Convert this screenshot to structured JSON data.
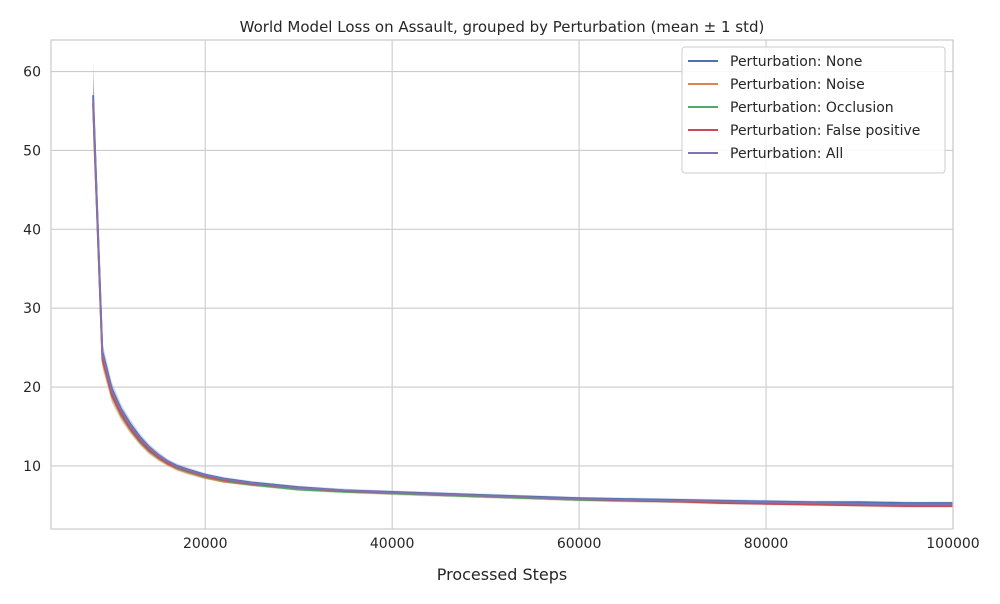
{
  "chart_data": {
    "type": "line",
    "title": "World Model Loss on Assault, grouped by Perturbation (mean ± 1 std)",
    "xlabel": "Processed Steps",
    "ylabel": "",
    "xlim": [
      3500,
      100000
    ],
    "ylim": [
      2,
      64
    ],
    "xticks": [
      20000,
      40000,
      60000,
      80000,
      100000
    ],
    "yticks": [
      10,
      20,
      30,
      40,
      50,
      60
    ],
    "grid": true,
    "legend_position": "top-right",
    "series": [
      {
        "name": "Perturbation: None",
        "color": "#4c72b0",
        "x": [
          8000,
          9000,
          10000,
          11000,
          12000,
          13000,
          14000,
          15000,
          16000,
          17000,
          18000,
          20000,
          22000,
          25000,
          30000,
          35000,
          40000,
          45000,
          50000,
          55000,
          60000,
          65000,
          70000,
          75000,
          80000,
          85000,
          90000,
          95000,
          100000
        ],
        "y": [
          57.0,
          24.5,
          19.8,
          17.2,
          15.3,
          13.7,
          12.4,
          11.4,
          10.6,
          10.0,
          9.6,
          8.9,
          8.4,
          7.9,
          7.3,
          6.9,
          6.7,
          6.5,
          6.3,
          6.1,
          5.9,
          5.8,
          5.7,
          5.6,
          5.5,
          5.4,
          5.4,
          5.3,
          5.3
        ],
        "std": [
          4.5,
          1.2,
          0.9,
          0.7,
          0.6,
          0.5,
          0.4,
          0.4,
          0.3,
          0.3,
          0.3,
          0.2,
          0.2,
          0.2,
          0.2,
          0.2,
          0.2,
          0.2,
          0.2,
          0.2,
          0.2,
          0.2,
          0.2,
          0.2,
          0.2,
          0.2,
          0.2,
          0.2,
          0.2
        ]
      },
      {
        "name": "Perturbation: Noise",
        "color": "#dd8452",
        "x": [
          8000,
          9000,
          10000,
          11000,
          12000,
          13000,
          14000,
          15000,
          16000,
          17000,
          18000,
          20000,
          22000,
          25000,
          30000,
          35000,
          40000,
          45000,
          50000,
          55000,
          60000,
          65000,
          70000,
          75000,
          80000,
          85000,
          90000,
          95000,
          100000
        ],
        "y": [
          55.5,
          23.3,
          18.8,
          16.3,
          14.5,
          13.0,
          11.8,
          10.9,
          10.2,
          9.6,
          9.2,
          8.5,
          8.0,
          7.6,
          7.1,
          6.8,
          6.5,
          6.3,
          6.1,
          5.9,
          5.7,
          5.6,
          5.5,
          5.4,
          5.3,
          5.2,
          5.1,
          5.1,
          5.0
        ],
        "std": [
          4.0,
          1.1,
          0.8,
          0.6,
          0.5,
          0.4,
          0.4,
          0.3,
          0.3,
          0.3,
          0.3,
          0.2,
          0.2,
          0.2,
          0.2,
          0.2,
          0.2,
          0.2,
          0.2,
          0.2,
          0.2,
          0.2,
          0.2,
          0.2,
          0.2,
          0.2,
          0.2,
          0.2,
          0.2
        ]
      },
      {
        "name": "Perturbation: Occlusion",
        "color": "#55a868",
        "x": [
          8000,
          9000,
          10000,
          11000,
          12000,
          13000,
          14000,
          15000,
          16000,
          17000,
          18000,
          20000,
          22000,
          25000,
          30000,
          35000,
          40000,
          45000,
          50000,
          55000,
          60000,
          65000,
          70000,
          75000,
          80000,
          85000,
          90000,
          95000,
          100000
        ],
        "y": [
          56.0,
          23.8,
          19.0,
          16.5,
          14.6,
          13.1,
          11.9,
          11.0,
          10.3,
          9.7,
          9.3,
          8.6,
          8.1,
          7.6,
          7.0,
          6.7,
          6.5,
          6.3,
          6.1,
          5.9,
          5.7,
          5.6,
          5.5,
          5.4,
          5.3,
          5.2,
          5.1,
          5.0,
          5.0
        ],
        "std": [
          4.2,
          1.1,
          0.9,
          0.7,
          0.5,
          0.5,
          0.4,
          0.4,
          0.3,
          0.3,
          0.3,
          0.3,
          0.2,
          0.2,
          0.2,
          0.2,
          0.2,
          0.2,
          0.2,
          0.2,
          0.2,
          0.2,
          0.2,
          0.2,
          0.2,
          0.2,
          0.2,
          0.2,
          0.2
        ]
      },
      {
        "name": "Perturbation: False positive",
        "color": "#c44e52",
        "x": [
          8000,
          9000,
          10000,
          11000,
          12000,
          13000,
          14000,
          15000,
          16000,
          17000,
          18000,
          20000,
          22000,
          25000,
          30000,
          35000,
          40000,
          45000,
          50000,
          55000,
          60000,
          65000,
          70000,
          75000,
          80000,
          85000,
          90000,
          95000,
          100000
        ],
        "y": [
          56.0,
          23.6,
          19.0,
          16.6,
          14.7,
          13.2,
          12.0,
          11.1,
          10.3,
          9.8,
          9.4,
          8.7,
          8.2,
          7.7,
          7.2,
          6.8,
          6.6,
          6.4,
          6.2,
          6.0,
          5.8,
          5.6,
          5.5,
          5.3,
          5.2,
          5.1,
          5.0,
          4.9,
          4.9
        ],
        "std": [
          4.3,
          1.1,
          0.8,
          0.6,
          0.5,
          0.4,
          0.4,
          0.3,
          0.3,
          0.3,
          0.3,
          0.2,
          0.2,
          0.2,
          0.2,
          0.2,
          0.2,
          0.2,
          0.2,
          0.2,
          0.2,
          0.2,
          0.2,
          0.2,
          0.2,
          0.2,
          0.2,
          0.2,
          0.2
        ]
      },
      {
        "name": "Perturbation: All",
        "color": "#8172b3",
        "x": [
          8000,
          9000,
          10000,
          11000,
          12000,
          13000,
          14000,
          15000,
          16000,
          17000,
          18000,
          20000,
          22000,
          25000,
          30000,
          35000,
          40000,
          45000,
          50000,
          55000,
          60000,
          65000,
          70000,
          75000,
          80000,
          85000,
          90000,
          95000,
          100000
        ],
        "y": [
          56.5,
          24.2,
          19.5,
          17.0,
          15.1,
          13.5,
          12.3,
          11.3,
          10.5,
          9.9,
          9.5,
          8.8,
          8.3,
          7.8,
          7.2,
          6.9,
          6.6,
          6.4,
          6.2,
          6.0,
          5.8,
          5.7,
          5.6,
          5.5,
          5.4,
          5.3,
          5.2,
          5.1,
          5.1
        ],
        "std": [
          4.4,
          1.2,
          0.9,
          0.7,
          0.6,
          0.5,
          0.4,
          0.4,
          0.3,
          0.3,
          0.3,
          0.2,
          0.2,
          0.2,
          0.2,
          0.2,
          0.2,
          0.2,
          0.2,
          0.2,
          0.2,
          0.2,
          0.2,
          0.2,
          0.2,
          0.2,
          0.2,
          0.2,
          0.2
        ]
      }
    ]
  }
}
